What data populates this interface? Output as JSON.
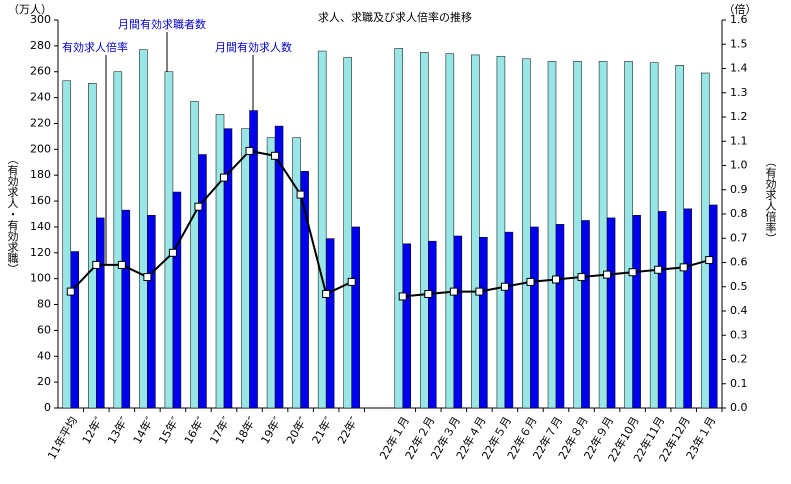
{
  "chart_data": {
    "type": "bar_line",
    "title": "求人、求職及び求人倍率の推移",
    "y_unit": "（万人）",
    "y2_unit": "（倍）",
    "y_label": "（有効求人・有効求職）",
    "y2_label": "（有効求人倍率）",
    "categories": [
      "11年平均",
      "12年″",
      "13年″",
      "14年″",
      "15年″",
      "16年″",
      "17年″",
      "18年″",
      "19年″",
      "20年″",
      "21年″",
      "22年″",
      null,
      "22年１月",
      "22年２月",
      "22年３月",
      "22年４月",
      "22年５月",
      "22年６月",
      "22年７月",
      "22年８月",
      "22年９月",
      "22年10月",
      "22年11月",
      "22年12月",
      "23年１月"
    ],
    "series": [
      {
        "name": "月間有効求職者数",
        "color": "#99e6e6",
        "values": [
          253,
          251,
          260,
          277,
          260,
          237,
          227,
          216,
          209,
          209,
          276,
          271,
          null,
          278,
          275,
          274,
          273,
          272,
          270,
          268,
          268,
          268,
          268,
          267,
          265,
          259
        ]
      },
      {
        "name": "月間有効求人数",
        "color": "#0000ee",
        "values": [
          121,
          147,
          153,
          149,
          167,
          196,
          216,
          230,
          218,
          183,
          131,
          140,
          null,
          127,
          129,
          133,
          132,
          136,
          140,
          142,
          145,
          147,
          149,
          152,
          154,
          157
        ]
      },
      {
        "name": "有効求人倍率",
        "color": "#000000",
        "axis": "y2",
        "values": [
          0.48,
          0.59,
          0.59,
          0.54,
          0.64,
          0.83,
          0.95,
          1.06,
          1.04,
          0.88,
          0.47,
          0.52,
          null,
          0.46,
          0.47,
          0.48,
          0.48,
          0.5,
          0.52,
          0.53,
          0.54,
          0.55,
          0.56,
          0.57,
          0.58,
          0.61
        ]
      }
    ],
    "ylim": [
      0,
      300
    ],
    "yticks": [
      0,
      20,
      40,
      60,
      80,
      100,
      120,
      140,
      160,
      180,
      200,
      220,
      240,
      260,
      280,
      300
    ],
    "y2lim": [
      0,
      1.6
    ],
    "y2ticks": [
      {
        "value": 0,
        "label": "0.0"
      },
      0.1,
      0.2,
      0.3,
      0.4,
      0.5,
      0.6,
      0.7,
      0.8,
      0.9,
      {
        "value": 1,
        "label": "1.0"
      },
      1.1,
      1.2,
      1.3,
      1.4,
      1.5,
      1.6
    ]
  }
}
